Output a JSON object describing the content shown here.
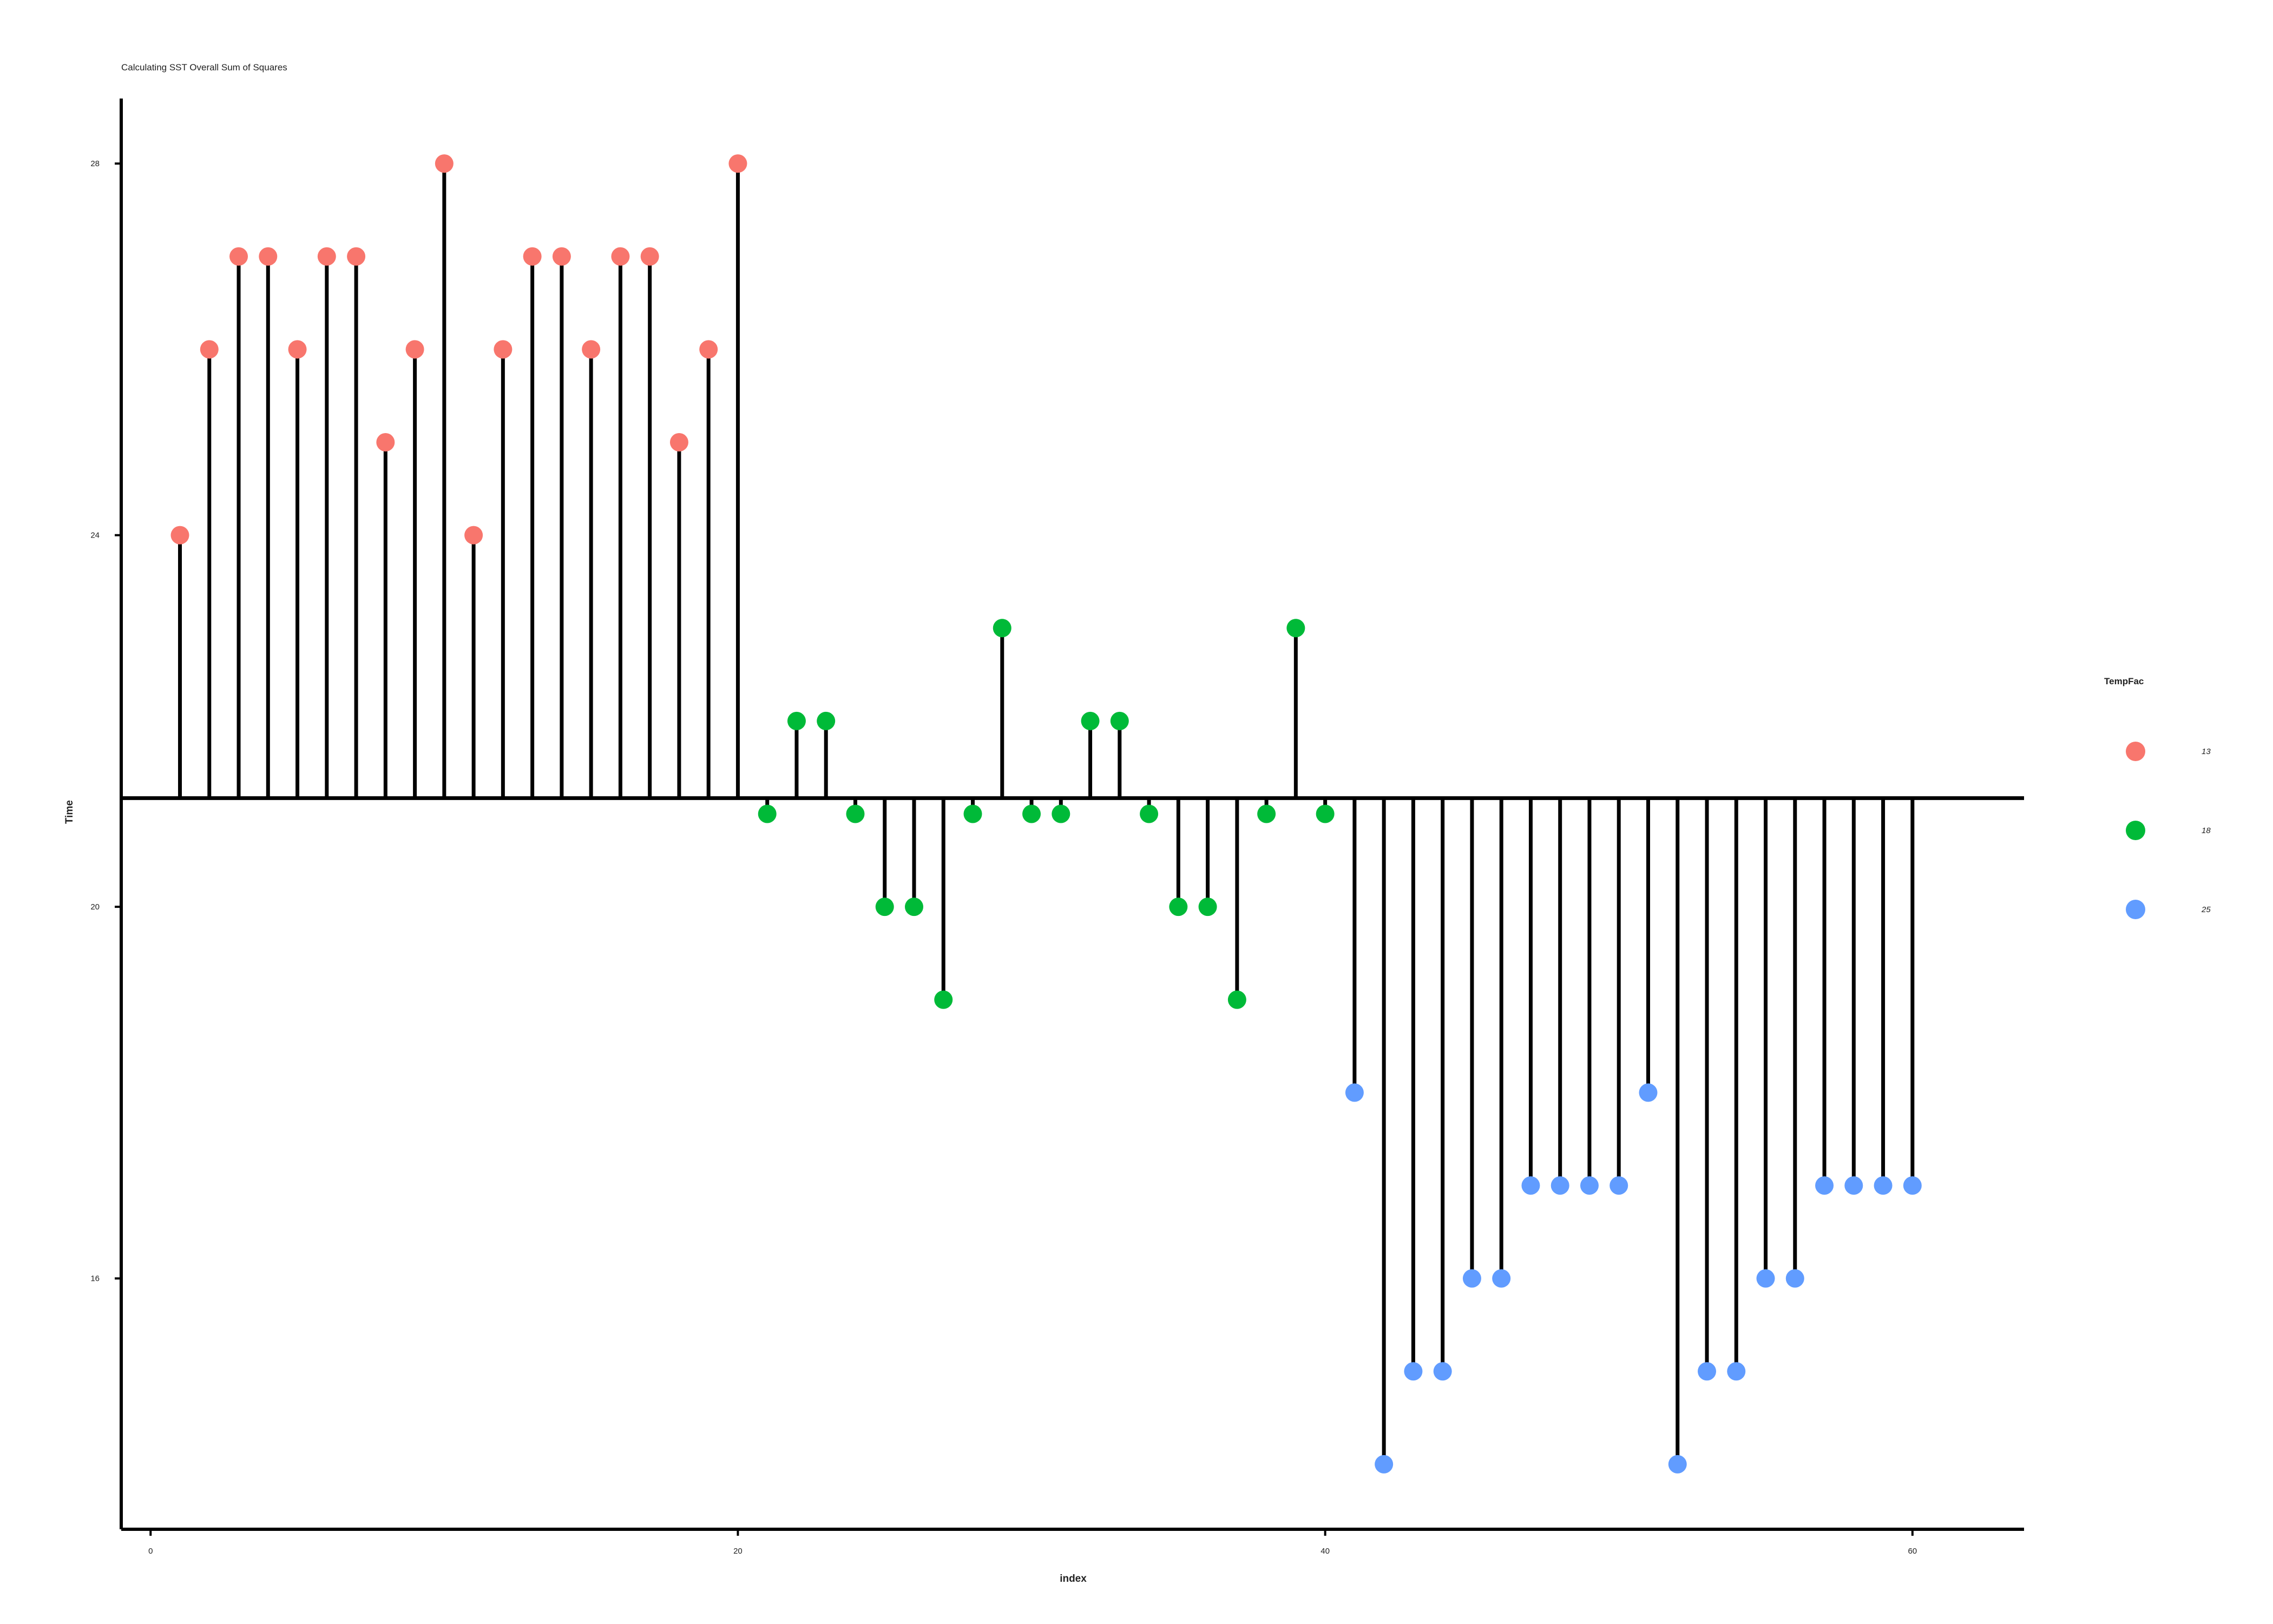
{
  "chart_data": {
    "type": "scatter",
    "variant": "lollipop-deviation-from-mean",
    "title": "Calculating SST Overall Sum of Squares",
    "xlabel": "index",
    "ylabel": "Time",
    "xlim": [
      -1,
      63.8
    ],
    "ylim": [
      13.3,
      28.7
    ],
    "x_ticks": [
      0,
      20,
      40,
      60
    ],
    "y_ticks": [
      16,
      20,
      24,
      28
    ],
    "grid": false,
    "legend_position": "right",
    "reference_line": 21.17,
    "legend": {
      "title": "TempFac",
      "entries": [
        {
          "label": "13",
          "color": "#F8766D"
        },
        {
          "label": "18",
          "color": "#00BA38"
        },
        {
          "label": "25",
          "color": "#619CFF"
        }
      ]
    },
    "series": [
      {
        "name": "13",
        "color": "#F8766D",
        "x": [
          1,
          2,
          3,
          4,
          5,
          6,
          7,
          8,
          9,
          10,
          11,
          12,
          13,
          14,
          15,
          16,
          17,
          18,
          19,
          20
        ],
        "y": [
          24,
          26,
          27,
          27,
          26,
          27,
          27,
          25,
          26,
          28,
          24,
          26,
          27,
          27,
          26,
          27,
          27,
          25,
          26,
          28
        ]
      },
      {
        "name": "18",
        "color": "#00BA38",
        "x": [
          21,
          22,
          23,
          24,
          25,
          26,
          27,
          28,
          29,
          30,
          31,
          32,
          33,
          34,
          35,
          36,
          37,
          38,
          39,
          40
        ],
        "y": [
          21,
          22,
          22,
          21,
          20,
          20,
          19,
          21,
          23,
          21,
          21,
          22,
          22,
          21,
          20,
          20,
          19,
          21,
          23,
          21
        ]
      },
      {
        "name": "25",
        "color": "#619CFF",
        "x": [
          41,
          42,
          43,
          44,
          45,
          46,
          47,
          48,
          49,
          50,
          51,
          52,
          53,
          54,
          55,
          56,
          57,
          58,
          59,
          60
        ],
        "y": [
          18,
          14,
          15,
          15,
          16,
          16,
          17,
          17,
          17,
          17,
          18,
          14,
          15,
          15,
          16,
          16,
          17,
          17,
          17,
          17
        ]
      }
    ]
  }
}
